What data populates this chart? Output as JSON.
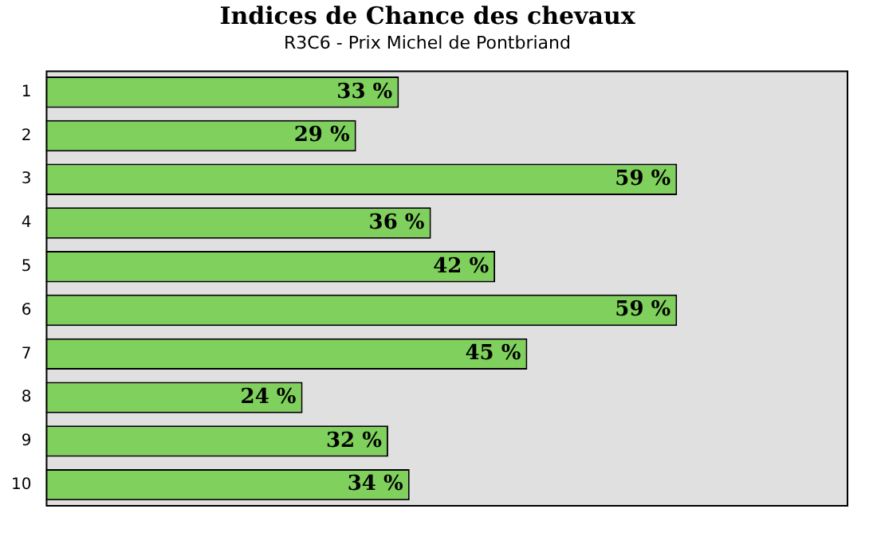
{
  "chart_data": {
    "type": "bar",
    "orientation": "horizontal",
    "title": "Indices de Chance des chevaux",
    "subtitle": "R3C6 - Prix Michel de Pontbriand",
    "categories": [
      "1",
      "2",
      "3",
      "4",
      "5",
      "6",
      "7",
      "8",
      "9",
      "10"
    ],
    "values": [
      33,
      29,
      59,
      36,
      42,
      59,
      45,
      24,
      32,
      34
    ],
    "value_labels": [
      "33 %",
      "29 %",
      "59 %",
      "36 %",
      "42 %",
      "59 %",
      "45 %",
      "24 %",
      "32 %",
      "34 %"
    ],
    "color": "#7fd05c",
    "xlim": [
      0,
      75
    ],
    "tick_labels": "y",
    "grid": false,
    "legend": false
  }
}
